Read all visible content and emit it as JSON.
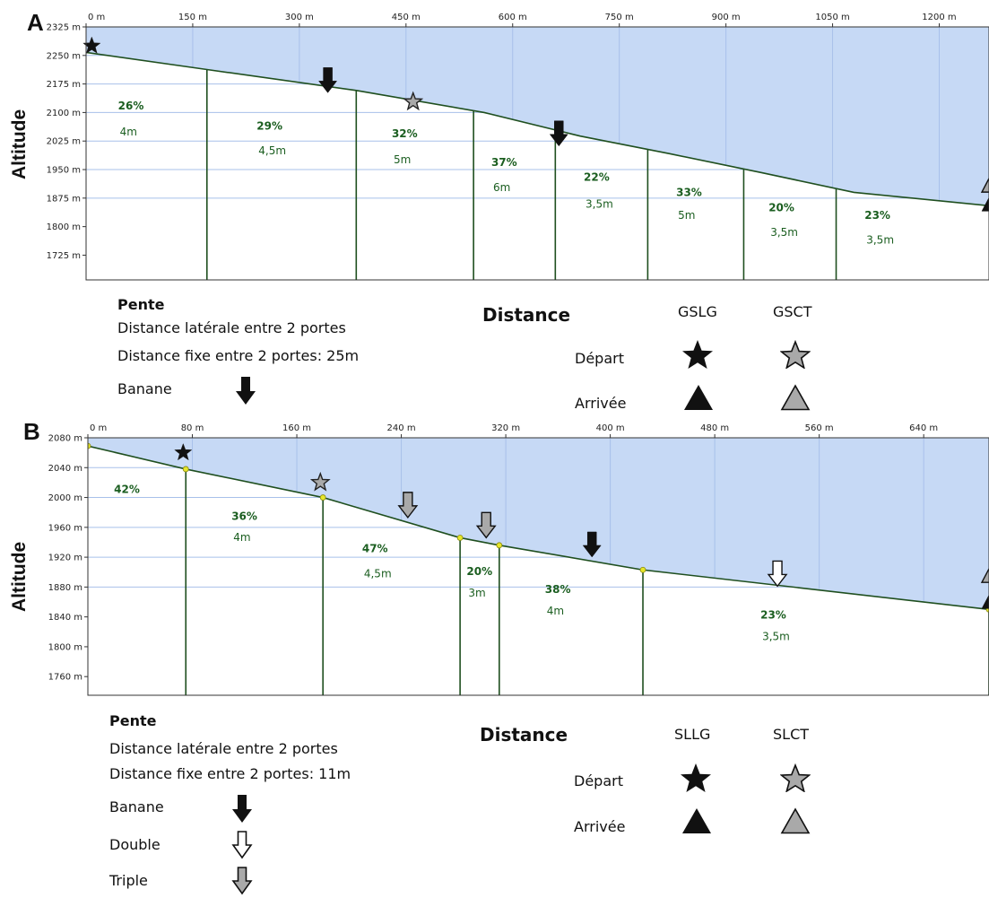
{
  "panels": [
    {
      "letter": "A",
      "y_axis_label": "Altitude",
      "chart_data": {
        "type": "area",
        "xlim": [
          0,
          1270
        ],
        "ylim": [
          1660,
          2325
        ],
        "x_ticks": [
          0,
          150,
          300,
          450,
          600,
          750,
          900,
          1050,
          1200
        ],
        "x_tick_labels": [
          "0 m",
          "150 m",
          "300 m",
          "450 m",
          "600 m",
          "750 m",
          "900 m",
          "1050 m",
          "1200 m"
        ],
        "y_ticks": [
          2325,
          2250,
          2175,
          2100,
          2025,
          1950,
          1875,
          1800,
          1725
        ],
        "y_tick_labels": [
          "2325 m",
          "2250 m",
          "2175 m",
          "2100 m",
          "2025 m",
          "1950 m",
          "1875 m",
          "1800 m",
          "1725 m"
        ],
        "profile": {
          "x": [
            0,
            170,
            380,
            560,
            695,
            820,
            950,
            1080,
            1270
          ],
          "y": [
            2258,
            2213,
            2158,
            2100,
            2038,
            1992,
            1942,
            1890,
            1855
          ]
        },
        "dividers": [
          170,
          380,
          545,
          660,
          790,
          925,
          1055
        ],
        "segments": [
          {
            "slope": "26%",
            "dist": "4m",
            "x": 45,
            "y": 2108,
            "dy": 2040
          },
          {
            "slope": "29%",
            "dist": "4,5m",
            "x": 240,
            "y": 2055,
            "dy": 1990
          },
          {
            "slope": "32%",
            "dist": "5m",
            "x": 430,
            "y": 2035,
            "dy": 1967
          },
          {
            "slope": "37%",
            "dist": "6m",
            "x": 570,
            "y": 1960,
            "dy": 1893
          },
          {
            "slope": "22%",
            "dist": "3,5m",
            "x": 700,
            "y": 1920,
            "dy": 1850
          },
          {
            "slope": "33%",
            "dist": "5m",
            "x": 830,
            "y": 1880,
            "dy": 1820
          },
          {
            "slope": "20%",
            "dist": "3,5m",
            "x": 960,
            "y": 1840,
            "dy": 1775
          },
          {
            "slope": "23%",
            "dist": "3,5m",
            "x": 1095,
            "y": 1820,
            "dy": 1755
          }
        ],
        "markers": [
          {
            "kind": "black-star",
            "x": 8,
            "y": 2275
          },
          {
            "kind": "grey-star",
            "x": 460,
            "y": 2128
          },
          {
            "kind": "black-arrow",
            "x": 340,
            "y": 2185
          },
          {
            "kind": "black-arrow",
            "x": 665,
            "y": 2045
          },
          {
            "kind": "grey-triangle",
            "x": 1270,
            "y": 1912
          },
          {
            "kind": "black-triangle",
            "x": 1270,
            "y": 1862
          }
        ]
      },
      "legend": {
        "pente": "Pente",
        "lateral": "Distance latérale entre 2 portes",
        "fixe": "Distance fixe entre 2 portes: 25m",
        "banane": "Banane",
        "distance": "Distance",
        "col1": "GSLG",
        "col2": "GSCT",
        "depart": "Départ",
        "arrivee": "Arrivée"
      }
    },
    {
      "letter": "B",
      "y_axis_label": "Altitude",
      "chart_data": {
        "type": "area",
        "xlim": [
          0,
          690
        ],
        "ylim": [
          1735,
          2080
        ],
        "x_ticks": [
          0,
          80,
          160,
          240,
          320,
          400,
          480,
          560,
          640
        ],
        "x_tick_labels": [
          "0 m",
          "80 m",
          "160 m",
          "240 m",
          "320 m",
          "400 m",
          "480 m",
          "560 m",
          "640 m"
        ],
        "y_ticks": [
          2080,
          2040,
          2000,
          1960,
          1920,
          1880,
          1840,
          1800,
          1760
        ],
        "y_tick_labels": [
          "2080 m",
          "2040 m",
          "2000 m",
          "1960 m",
          "1920 m",
          "1880 m",
          "1840 m",
          "1800 m",
          "1760 m"
        ],
        "profile": {
          "x": [
            0,
            75,
            180,
            285,
            315,
            425,
            690
          ],
          "y": [
            2069,
            2038,
            2000,
            1946,
            1936,
            1903,
            1850
          ]
        },
        "dividers": [
          75,
          180,
          285,
          315,
          425,
          690
        ],
        "vertices": [
          0,
          75,
          180,
          285,
          315,
          425,
          690
        ],
        "segments": [
          {
            "slope": "42%",
            "dist": "",
            "x": 20,
            "y": 2006,
            "dy": null
          },
          {
            "slope": "36%",
            "dist": "4m",
            "x": 110,
            "y": 1970,
            "dy": 1942
          },
          {
            "slope": "47%",
            "dist": "4,5m",
            "x": 210,
            "y": 1927,
            "dy": 1893
          },
          {
            "slope": "20%",
            "dist": "3m",
            "x": 290,
            "y": 1896,
            "dy": 1867
          },
          {
            "slope": "38%",
            "dist": "4m",
            "x": 350,
            "y": 1872,
            "dy": 1843
          },
          {
            "slope": "23%",
            "dist": "3,5m",
            "x": 515,
            "y": 1838,
            "dy": 1809
          }
        ],
        "markers": [
          {
            "kind": "black-star",
            "x": 73,
            "y": 2060
          },
          {
            "kind": "grey-star",
            "x": 178,
            "y": 2020
          },
          {
            "kind": "grey-arrow",
            "x": 245,
            "y": 1990
          },
          {
            "kind": "grey-arrow",
            "x": 305,
            "y": 1963
          },
          {
            "kind": "black-arrow",
            "x": 386,
            "y": 1937
          },
          {
            "kind": "white-arrow",
            "x": 528,
            "y": 1898
          },
          {
            "kind": "grey-triangle",
            "x": 690,
            "y": 1897
          },
          {
            "kind": "black-triangle",
            "x": 690,
            "y": 1862
          }
        ]
      },
      "legend": {
        "pente": "Pente",
        "lateral": "Distance latérale entre 2 portes",
        "fixe": "Distance fixe entre 2 portes: 11m",
        "banane": "Banane",
        "double": "Double",
        "triple": "Triple",
        "distance": "Distance",
        "col1": "SLLG",
        "col2": "SLCT",
        "depart": "Départ",
        "arrivee": "Arrivée"
      }
    }
  ],
  "colors": {
    "sky": "#c6d9f5",
    "grid": "#a8c0ea",
    "profile": "#1f4f1f",
    "slope_text": "#1b5e20",
    "vertex": "#e6e62a",
    "grey_symbol": "#a9a9a9"
  }
}
